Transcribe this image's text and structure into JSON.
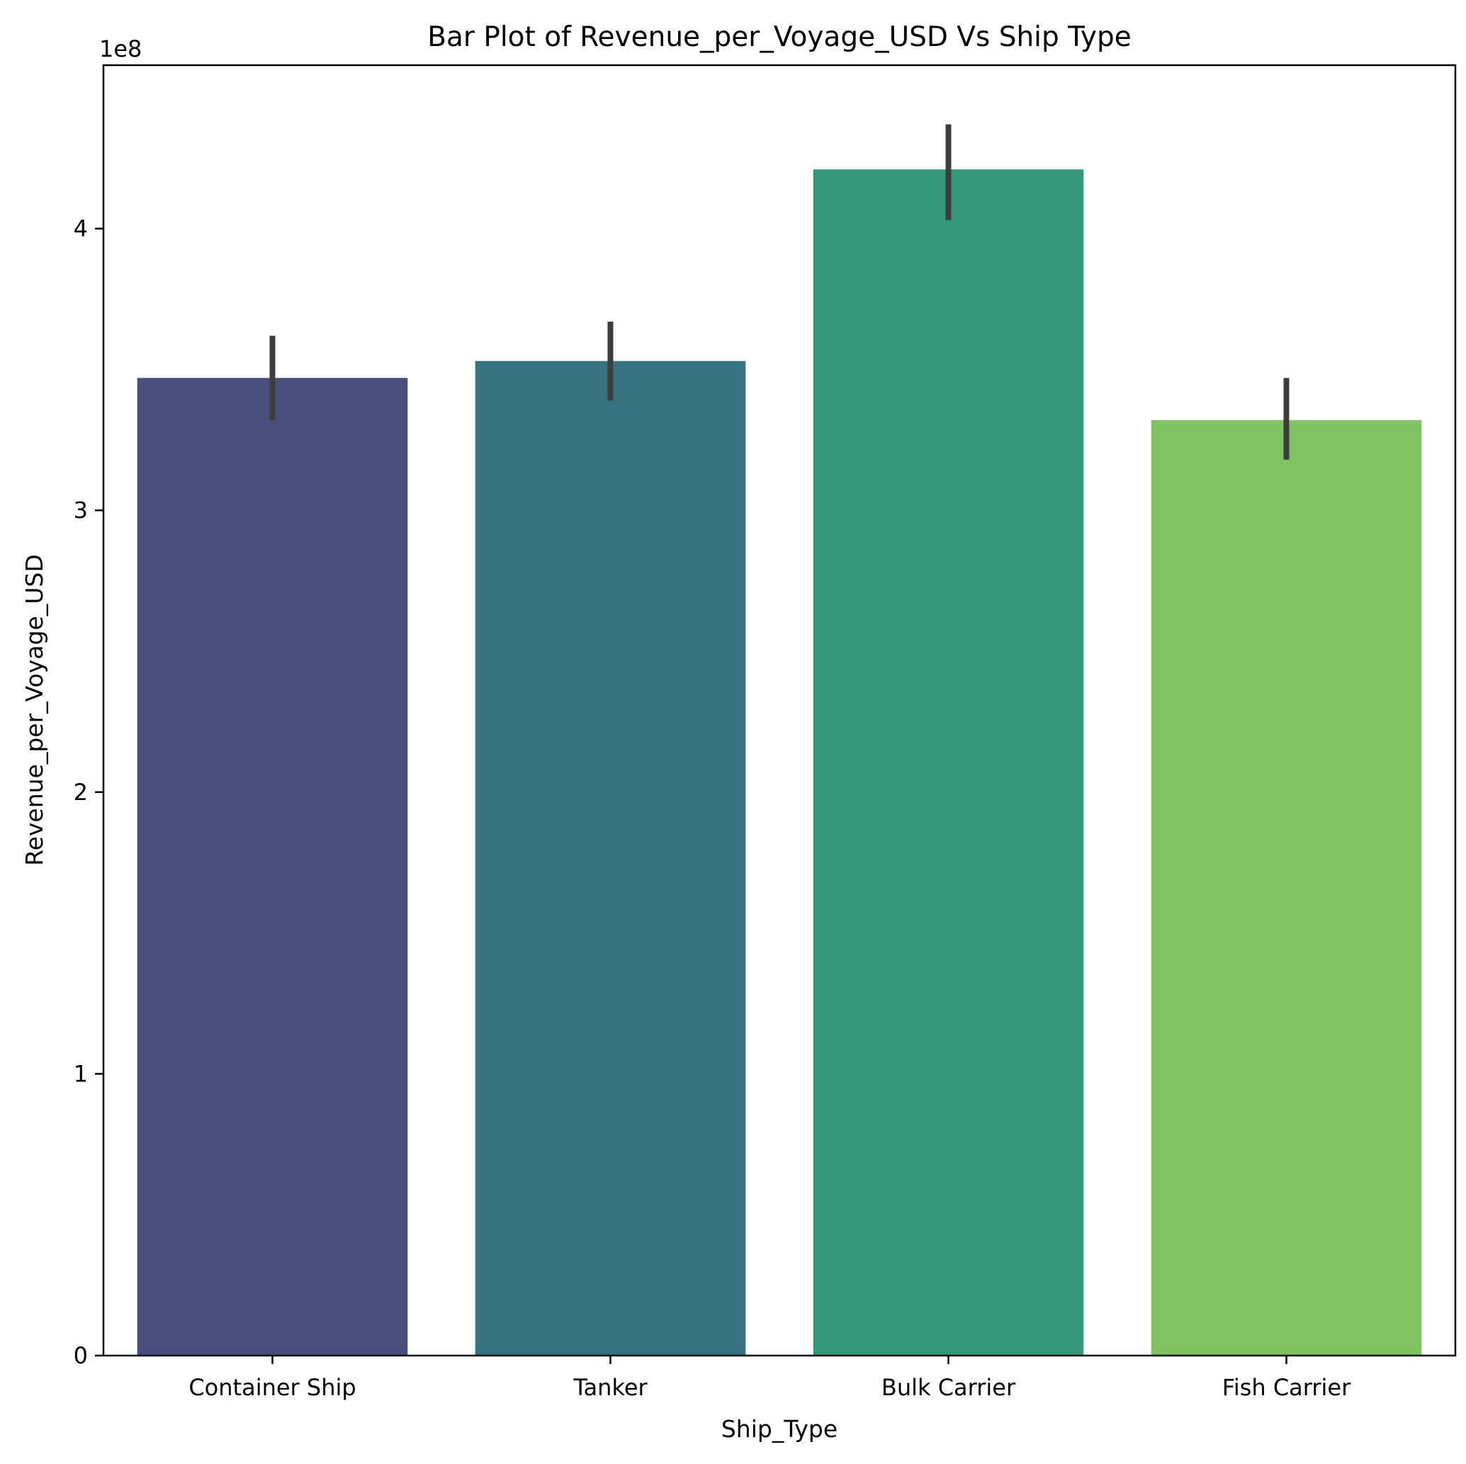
{
  "chart_data": {
    "type": "bar",
    "title": "Bar Plot of Revenue_per_Voyage_USD Vs Ship Type",
    "xlabel": "Ship_Type",
    "ylabel": "Revenue_per_Voyage_USD",
    "y_offset_label": "1e8",
    "categories": [
      "Container Ship",
      "Tanker",
      "Bulk Carrier",
      "Fish Carrier"
    ],
    "values": [
      347000000,
      353000000,
      421000000,
      332000000
    ],
    "error_bars": [
      {
        "low": 332000000,
        "high": 362000000
      },
      {
        "low": 339000000,
        "high": 367000000
      },
      {
        "low": 403000000,
        "high": 437000000
      },
      {
        "low": 318000000,
        "high": 347000000
      }
    ],
    "colors": [
      "#4a4e7d",
      "#37727f",
      "#35977a",
      "#7fc260"
    ],
    "errorbar_color": "#3d3d3d",
    "ylim": [
      0,
      458000000
    ],
    "yticks": [
      0,
      100000000,
      200000000,
      300000000,
      400000000
    ],
    "ytick_labels": [
      "0",
      "1",
      "2",
      "3",
      "4"
    ],
    "grid": false
  }
}
